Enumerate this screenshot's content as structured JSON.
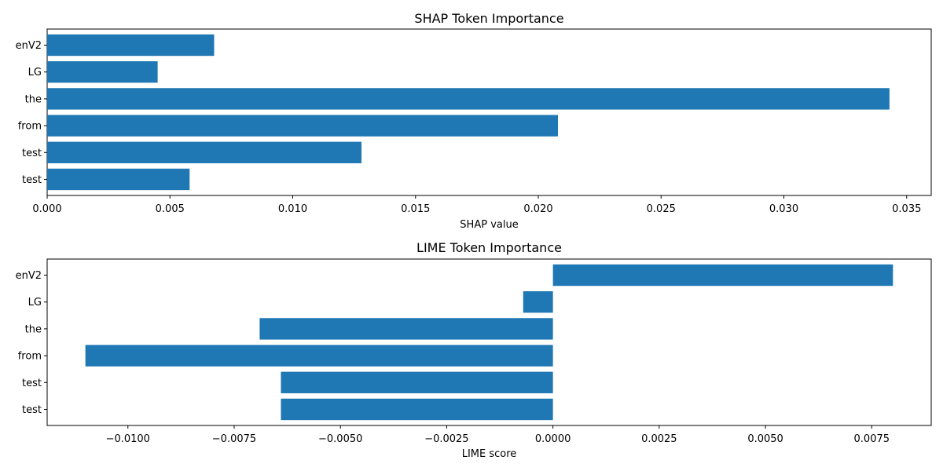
{
  "chart_data": [
    {
      "type": "bar",
      "orientation": "horizontal",
      "title": "SHAP Token Importance",
      "xlabel": "SHAP value",
      "ylabel": "",
      "categories": [
        "enV2",
        "LG",
        "the",
        "from",
        "test",
        "test"
      ],
      "values": [
        0.0068,
        0.0045,
        0.0343,
        0.0208,
        0.0128,
        0.0058
      ],
      "xlim": [
        0,
        0.036
      ],
      "xticks": [
        0.0,
        0.005,
        0.01,
        0.015,
        0.02,
        0.025,
        0.03,
        0.035
      ],
      "xtick_labels": [
        "0.000",
        "0.005",
        "0.010",
        "0.015",
        "0.020",
        "0.025",
        "0.030",
        "0.035"
      ],
      "grid": false,
      "color": "#1f77b4"
    },
    {
      "type": "bar",
      "orientation": "horizontal",
      "title": "LIME Token Importance",
      "xlabel": "LIME score",
      "ylabel": "",
      "categories": [
        "enV2",
        "LG",
        "the",
        "from",
        "test",
        "test"
      ],
      "values": [
        0.008,
        -0.0007,
        -0.0069,
        -0.011,
        -0.0064,
        -0.0064
      ],
      "xlim": [
        -0.0119,
        0.0089
      ],
      "xticks": [
        -0.01,
        -0.0075,
        -0.005,
        -0.0025,
        0.0,
        0.0025,
        0.005,
        0.0075
      ],
      "xtick_labels": [
        "−0.0100",
        "−0.0075",
        "−0.0050",
        "−0.0025",
        "0.0000",
        "0.0025",
        "0.0050",
        "0.0075"
      ],
      "grid": false,
      "color": "#1f77b4"
    }
  ]
}
